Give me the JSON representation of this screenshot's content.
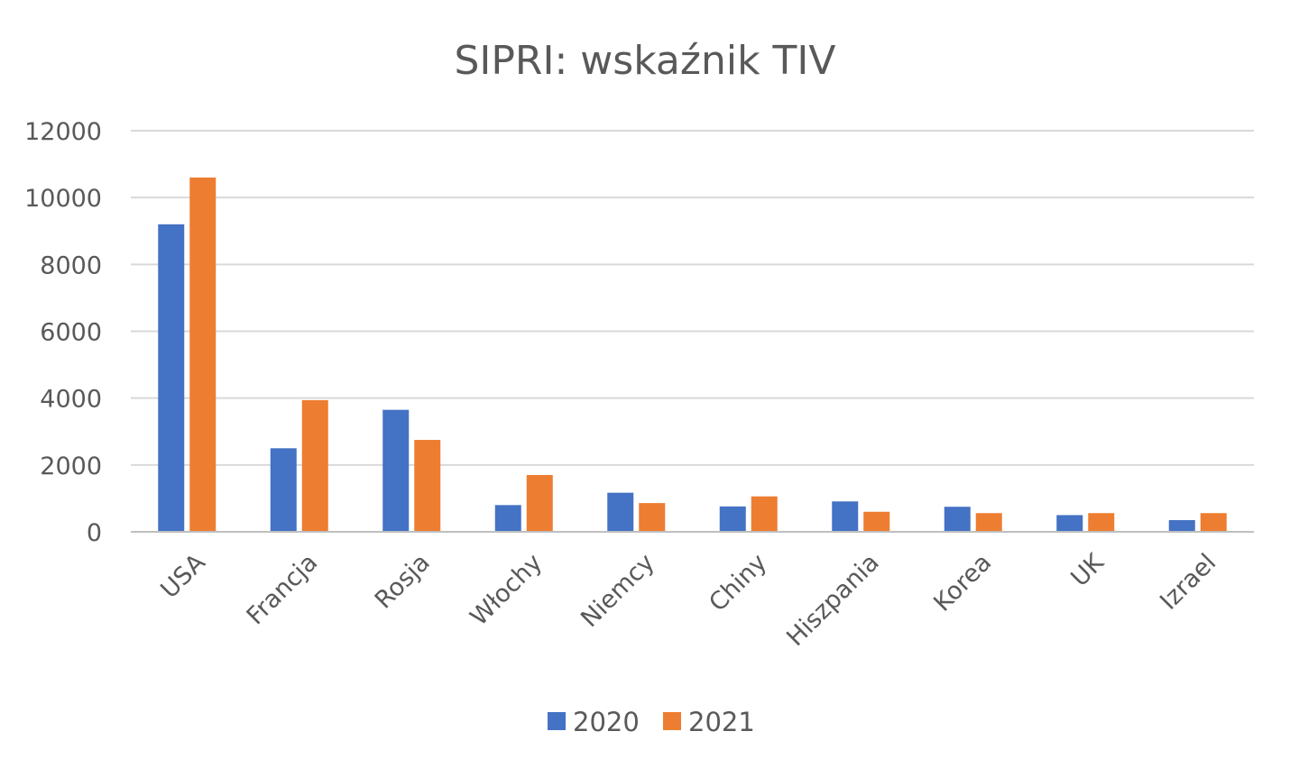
{
  "chart_data": {
    "type": "bar",
    "title": "SIPRI: wskaźnik TIV",
    "xlabel": "",
    "ylabel": "",
    "categories": [
      "USA",
      "Francja",
      "Rosja",
      "Włochy",
      "Niemcy",
      "Chiny",
      "Hiszpania",
      "Korea",
      "UK",
      "Izrael"
    ],
    "series": [
      {
        "name": "2020",
        "color": "#4472c4",
        "values": [
          9200,
          2500,
          3650,
          800,
          1170,
          760,
          910,
          750,
          500,
          350
        ]
      },
      {
        "name": "2021",
        "color": "#ed7d31",
        "values": [
          10600,
          3940,
          2750,
          1700,
          860,
          1060,
          600,
          560,
          560,
          560
        ]
      }
    ],
    "yticks": [
      "0",
      "2000",
      "4000",
      "6000",
      "8000",
      "10000",
      "12000"
    ],
    "ylim": [
      0,
      12000
    ],
    "grid": true,
    "legend_position": "bottom"
  }
}
